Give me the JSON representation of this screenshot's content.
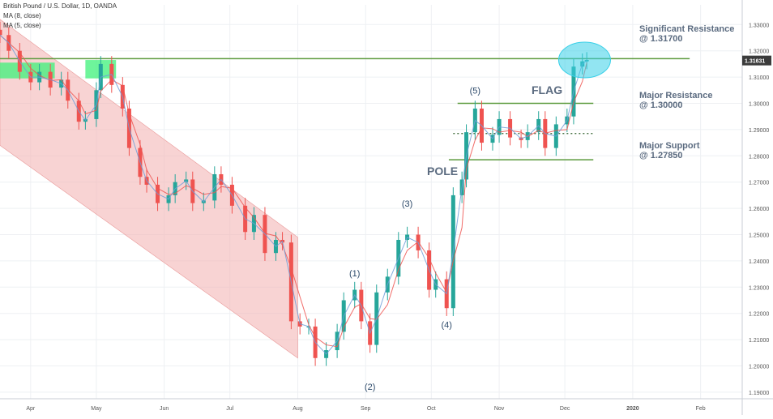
{
  "header": {
    "symbol": "British Pound / U.S. Dollar, 1D, OANDA",
    "ma8": "MA (8, close)",
    "ma5": "MA (5, close)"
  },
  "price_tag": "1.31631",
  "colors": {
    "up": "#26a69a",
    "down": "#ef5350",
    "ma8": "#ef5350",
    "ma5": "#6f9ed8",
    "channel": "#f4b6b6",
    "level": "#5b9a3d",
    "zone": "#3df27a",
    "ellipse": "#38d0e8",
    "label": "#5b6b80",
    "price_tag": "#3b3b3b",
    "wave_label": "#2d4a6a"
  },
  "annotations": {
    "sig_res_title": "Significant Resistance",
    "sig_res_value": "@ 1.31700",
    "major_res_title": "Major Resistance",
    "major_res_value": "@ 1.30000",
    "major_sup_title": "Major Support",
    "major_sup_value": "@ 1.27850",
    "flag": "FLAG",
    "pole": "POLE",
    "waves": [
      "(1)",
      "(2)",
      "(3)",
      "(4)",
      "(5)"
    ]
  },
  "chart_data": {
    "type": "candlestick",
    "title": "British Pound / U.S. Dollar, 1D, OANDA",
    "x_ticks": [
      "Apr",
      "May",
      "Jun",
      "Jul",
      "Aug",
      "Sep",
      "Oct",
      "Nov",
      "Dec",
      "2020",
      "Feb"
    ],
    "y_ticks": [
      "1.19000",
      "1.20000",
      "1.21000",
      "1.22000",
      "1.23000",
      "1.24000",
      "1.25000",
      "1.26000",
      "1.27000",
      "1.28000",
      "1.29000",
      "1.30000",
      "1.31000",
      "1.32000",
      "1.33000"
    ],
    "ylim": [
      1.1875,
      1.3375
    ],
    "x_range": [
      "2019-03-18",
      "2020-02-20"
    ],
    "grid": true,
    "levels": [
      {
        "name": "Significant Resistance",
        "value": 1.317
      },
      {
        "name": "Major Resistance",
        "value": 1.3
      },
      {
        "name": "Major Support",
        "value": 1.2785
      },
      {
        "name": "Flag midline",
        "value": 1.2885,
        "style": "dotted"
      }
    ],
    "waves": [
      {
        "label": "(1)",
        "date": "2019-08-27",
        "value": 1.2316
      },
      {
        "label": "(2)",
        "date": "2019-09-03",
        "value": 1.1959
      },
      {
        "label": "(3)",
        "date": "2019-09-20",
        "value": 1.2582
      },
      {
        "label": "(4)",
        "date": "2019-10-08",
        "value": 1.2195
      },
      {
        "label": "(5)",
        "date": "2019-10-21",
        "value": 1.3012
      }
    ],
    "channel": {
      "upper": [
        [
          "2019-03-18",
          1.332
        ],
        [
          "2019-08-01",
          1.249
        ]
      ],
      "lower": [
        [
          "2019-03-18",
          1.284
        ],
        [
          "2019-08-01",
          1.203
        ]
      ]
    },
    "resistance_zones": [
      {
        "from": "2019-03-18",
        "to": "2019-04-12",
        "low": 1.3095,
        "high": 1.3155
      },
      {
        "from": "2019-04-26",
        "to": "2019-05-10",
        "low": 1.3095,
        "high": 1.3165
      }
    ],
    "highlight": {
      "date": "2019-12-10",
      "value": 1.3165
    },
    "price_tag": 1.31631,
    "series": [
      {
        "date": "2019-03-18",
        "close": 1.326
      },
      {
        "date": "2019-03-22",
        "close": 1.32
      },
      {
        "date": "2019-03-27",
        "close": 1.312
      },
      {
        "date": "2019-04-01",
        "close": 1.308
      },
      {
        "date": "2019-04-05",
        "close": 1.312
      },
      {
        "date": "2019-04-10",
        "close": 1.306
      },
      {
        "date": "2019-04-15",
        "close": 1.309
      },
      {
        "date": "2019-04-18",
        "close": 1.301
      },
      {
        "date": "2019-04-23",
        "close": 1.293
      },
      {
        "date": "2019-04-26",
        "close": 1.294
      },
      {
        "date": "2019-05-01",
        "close": 1.305
      },
      {
        "date": "2019-05-03",
        "close": 1.315
      },
      {
        "date": "2019-05-08",
        "close": 1.307
      },
      {
        "date": "2019-05-13",
        "close": 1.298
      },
      {
        "date": "2019-05-16",
        "close": 1.283
      },
      {
        "date": "2019-05-21",
        "close": 1.272
      },
      {
        "date": "2019-05-24",
        "close": 1.269
      },
      {
        "date": "2019-05-29",
        "close": 1.262
      },
      {
        "date": "2019-06-03",
        "close": 1.265
      },
      {
        "date": "2019-06-06",
        "close": 1.27
      },
      {
        "date": "2019-06-11",
        "close": 1.271
      },
      {
        "date": "2019-06-14",
        "close": 1.262
      },
      {
        "date": "2019-06-19",
        "close": 1.263
      },
      {
        "date": "2019-06-24",
        "close": 1.273
      },
      {
        "date": "2019-06-27",
        "close": 1.269
      },
      {
        "date": "2019-07-02",
        "close": 1.261
      },
      {
        "date": "2019-07-08",
        "close": 1.251
      },
      {
        "date": "2019-07-12",
        "close": 1.2575
      },
      {
        "date": "2019-07-17",
        "close": 1.243
      },
      {
        "date": "2019-07-22",
        "close": 1.248
      },
      {
        "date": "2019-07-25",
        "close": 1.247
      },
      {
        "date": "2019-07-29",
        "close": 1.217
      },
      {
        "date": "2019-08-02",
        "close": 1.215
      },
      {
        "date": "2019-08-06",
        "close": 1.215
      },
      {
        "date": "2019-08-09",
        "close": 1.203
      },
      {
        "date": "2019-08-14",
        "close": 1.206
      },
      {
        "date": "2019-08-19",
        "close": 1.213
      },
      {
        "date": "2019-08-22",
        "close": 1.225
      },
      {
        "date": "2019-08-27",
        "close": 1.229
      },
      {
        "date": "2019-08-30",
        "close": 1.217
      },
      {
        "date": "2019-09-03",
        "close": 1.208
      },
      {
        "date": "2019-09-06",
        "close": 1.228
      },
      {
        "date": "2019-09-11",
        "close": 1.234
      },
      {
        "date": "2019-09-16",
        "close": 1.248
      },
      {
        "date": "2019-09-20",
        "close": 1.25
      },
      {
        "date": "2019-09-25",
        "close": 1.244
      },
      {
        "date": "2019-09-30",
        "close": 1.229
      },
      {
        "date": "2019-10-03",
        "close": 1.233
      },
      {
        "date": "2019-10-08",
        "close": 1.222
      },
      {
        "date": "2019-10-11",
        "close": 1.265
      },
      {
        "date": "2019-10-15",
        "close": 1.271
      },
      {
        "date": "2019-10-17",
        "close": 1.289
      },
      {
        "date": "2019-10-21",
        "close": 1.298
      },
      {
        "date": "2019-10-24",
        "close": 1.285
      },
      {
        "date": "2019-10-29",
        "close": 1.288
      },
      {
        "date": "2019-11-01",
        "close": 1.294
      },
      {
        "date": "2019-11-06",
        "close": 1.287
      },
      {
        "date": "2019-11-11",
        "close": 1.286
      },
      {
        "date": "2019-11-14",
        "close": 1.289
      },
      {
        "date": "2019-11-19",
        "close": 1.294
      },
      {
        "date": "2019-11-22",
        "close": 1.283
      },
      {
        "date": "2019-11-27",
        "close": 1.292
      },
      {
        "date": "2019-12-02",
        "close": 1.295
      },
      {
        "date": "2019-12-05",
        "close": 1.314
      },
      {
        "date": "2019-12-09",
        "close": 1.316
      },
      {
        "date": "2019-12-11",
        "close": 1.3165
      }
    ]
  }
}
